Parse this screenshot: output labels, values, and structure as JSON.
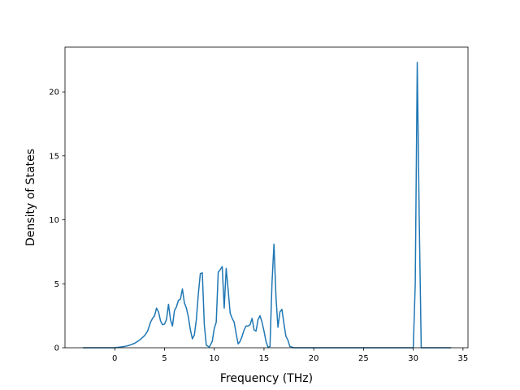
{
  "chart_data": {
    "type": "line",
    "title": "",
    "xlabel": "Frequency (THz)",
    "ylabel": "Density of States",
    "xlim": [
      -5,
      35.5
    ],
    "ylim": [
      0,
      23.5
    ],
    "xticks": [
      0,
      5,
      10,
      15,
      20,
      25,
      30,
      35
    ],
    "yticks": [
      0,
      5,
      10,
      15,
      20
    ],
    "grid": false,
    "legend": "none",
    "series": [
      {
        "color": "#1f77b4",
        "x": [
          -3.2,
          -1.0,
          0.0,
          0.5,
          1.0,
          1.5,
          2.0,
          2.5,
          3.0,
          3.3,
          3.6,
          3.8,
          4.0,
          4.2,
          4.4,
          4.6,
          4.8,
          5.0,
          5.2,
          5.4,
          5.6,
          5.8,
          6.0,
          6.2,
          6.4,
          6.6,
          6.8,
          7.0,
          7.2,
          7.4,
          7.6,
          7.8,
          8.0,
          8.2,
          8.4,
          8.6,
          8.8,
          9.0,
          9.2,
          9.5,
          9.8,
          10.0,
          10.2,
          10.4,
          10.6,
          10.8,
          11.0,
          11.2,
          11.4,
          11.6,
          11.8,
          12.0,
          12.2,
          12.4,
          12.6,
          12.8,
          13.0,
          13.2,
          13.4,
          13.6,
          13.8,
          14.0,
          14.2,
          14.4,
          14.6,
          14.8,
          15.0,
          15.2,
          15.4,
          15.6,
          15.8,
          16.0,
          16.2,
          16.4,
          16.6,
          16.8,
          17.0,
          17.2,
          17.4,
          17.6,
          18.0,
          20.0,
          25.0,
          29.5,
          30.0,
          30.2,
          30.4,
          30.6,
          30.8,
          31.0,
          32.0,
          33.8
        ],
        "y": [
          0,
          0,
          0,
          0.05,
          0.1,
          0.2,
          0.35,
          0.6,
          0.95,
          1.3,
          2.0,
          2.3,
          2.5,
          3.1,
          2.8,
          2.1,
          1.8,
          1.85,
          2.2,
          3.4,
          2.2,
          1.7,
          2.9,
          3.2,
          3.7,
          3.8,
          4.6,
          3.5,
          3.1,
          2.4,
          1.4,
          0.7,
          1.0,
          2.2,
          4.2,
          5.8,
          5.85,
          1.8,
          0.2,
          0.05,
          0.5,
          1.5,
          2.0,
          5.9,
          6.1,
          6.35,
          3.1,
          6.2,
          4.5,
          2.7,
          2.3,
          2.0,
          1.1,
          0.3,
          0.5,
          0.9,
          1.4,
          1.7,
          1.7,
          1.8,
          2.3,
          1.4,
          1.3,
          2.2,
          2.5,
          2.0,
          1.3,
          0.5,
          0.05,
          0.1,
          5.0,
          8.1,
          4.0,
          1.6,
          2.8,
          3.0,
          1.9,
          0.9,
          0.6,
          0.1,
          0,
          0,
          0,
          0,
          0,
          5.0,
          22.3,
          10.0,
          0,
          0,
          0,
          0
        ]
      }
    ]
  }
}
